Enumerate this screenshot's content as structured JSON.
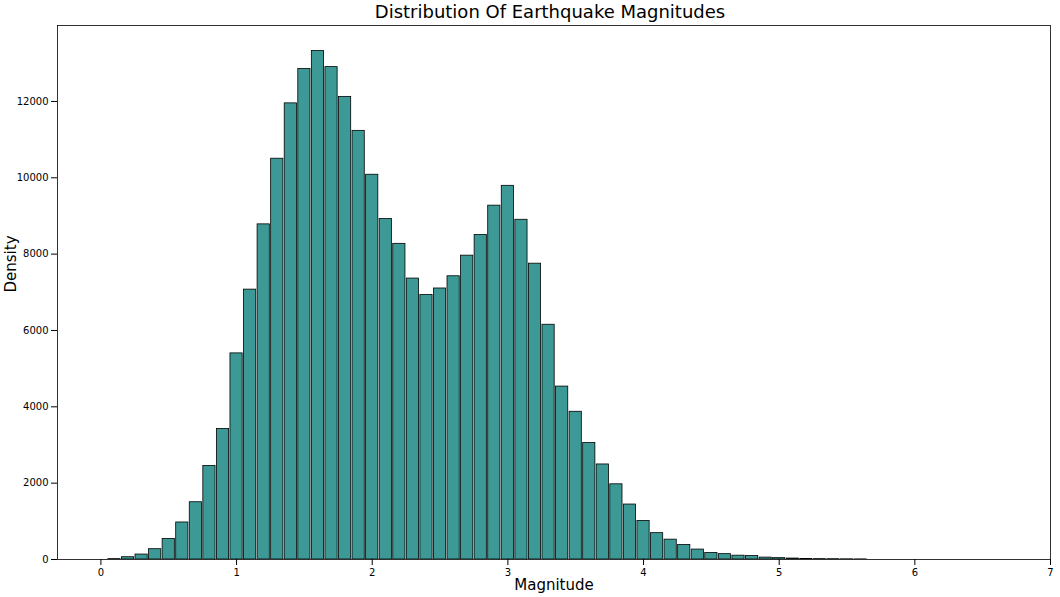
{
  "chart_data": {
    "type": "bar",
    "title": "Distribution Of Earthquake Magnitudes",
    "x_label": "Magnitude",
    "y_label": "Density",
    "x": [
      0.1,
      0.2,
      0.3,
      0.4,
      0.5,
      0.6,
      0.7,
      0.8,
      0.9,
      1.0,
      1.1,
      1.2,
      1.3,
      1.4,
      1.5,
      1.6,
      1.7,
      1.8,
      1.9,
      2.0,
      2.1,
      2.2,
      2.3,
      2.4,
      2.5,
      2.6,
      2.7,
      2.8,
      2.9,
      3.0,
      3.1,
      3.2,
      3.3,
      3.4,
      3.5,
      3.6,
      3.7,
      3.8,
      3.9,
      4.0,
      4.1,
      4.2,
      4.3,
      4.4,
      4.5,
      4.6,
      4.7,
      4.8,
      4.9,
      5.0,
      5.1,
      5.2,
      5.3,
      5.4,
      5.5,
      5.6
    ],
    "values": [
      10,
      60,
      130,
      270,
      540,
      970,
      1500,
      2450,
      3420,
      5400,
      7070,
      8780,
      10500,
      11950,
      12850,
      13320,
      12900,
      12120,
      11230,
      10080,
      8920,
      8270,
      7360,
      6930,
      7100,
      7420,
      7960,
      8500,
      9270,
      9790,
      8900,
      7750,
      6150,
      4530,
      3870,
      3050,
      2490,
      1970,
      1440,
      1010,
      690,
      520,
      380,
      260,
      170,
      140,
      100,
      90,
      50,
      35,
      25,
      15,
      10,
      8,
      5,
      3
    ],
    "color": "#3d9995",
    "xlim": [
      -0.32,
      7.0
    ],
    "xticks": [
      0,
      1,
      2,
      3,
      4,
      5,
      6,
      7
    ],
    "ylim": [
      0,
      13990
    ],
    "yticks": [
      0,
      2000,
      4000,
      6000,
      8000,
      10000,
      12000
    ],
    "grid": false
  }
}
